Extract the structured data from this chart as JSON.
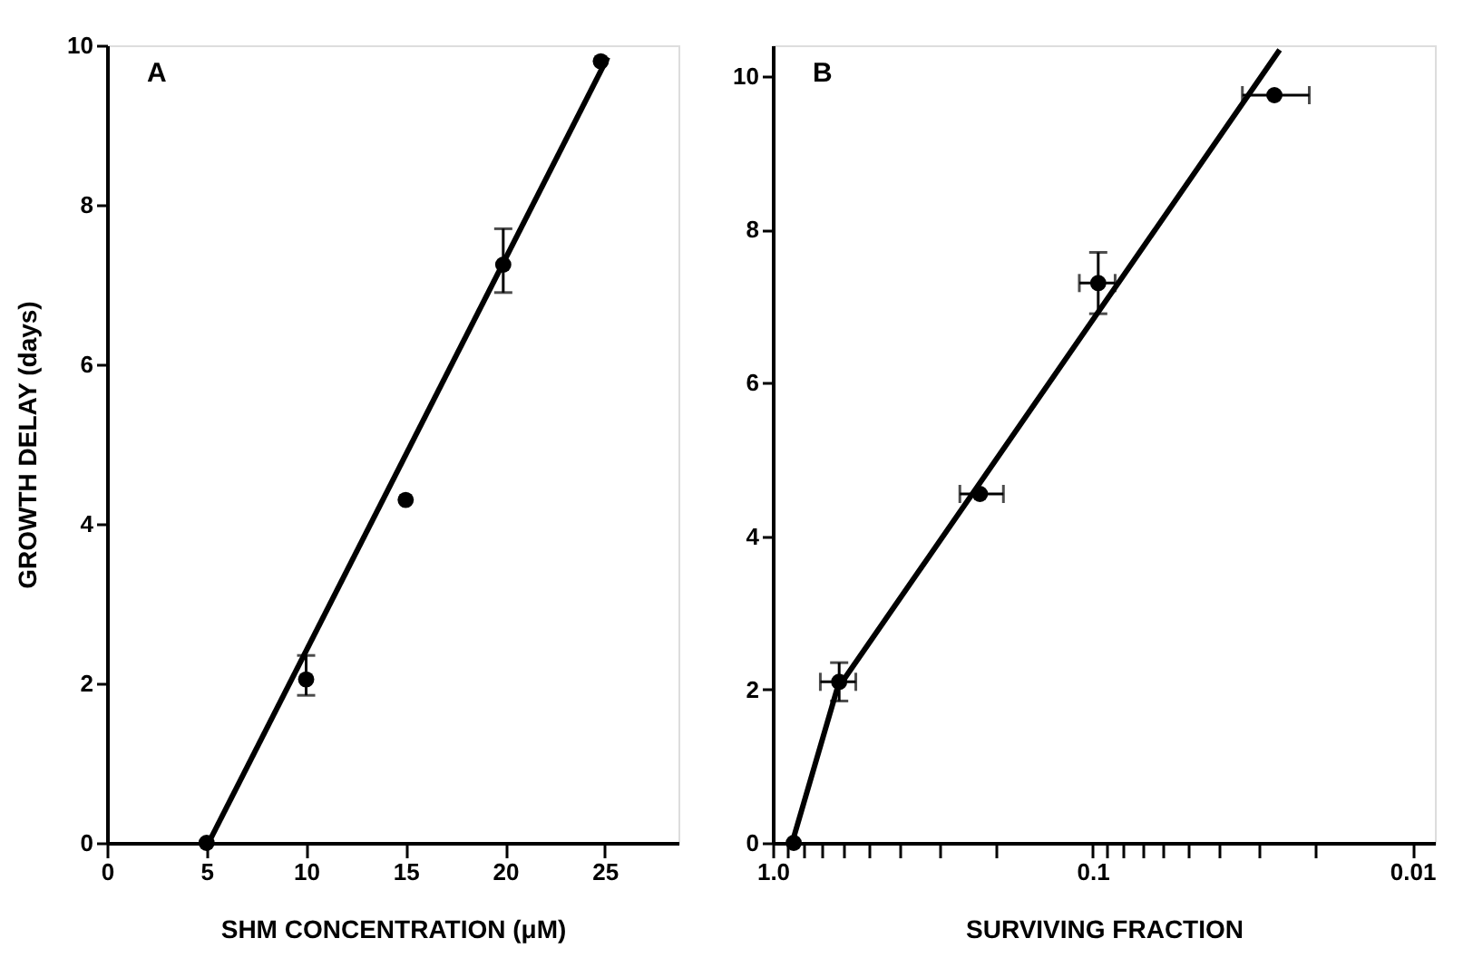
{
  "chart_data": [
    {
      "type": "scatter",
      "xlabel": "SHM CONCENTRATION (μM)",
      "ylabel": "GROWTH DELAY (days)",
      "annotations": [
        "A"
      ],
      "xlim": [
        0,
        28.7
      ],
      "xticks": [
        0,
        5,
        10,
        15,
        20,
        25
      ],
      "ylim": [
        0,
        10
      ],
      "yticks": [
        0,
        2,
        4,
        6,
        8,
        10
      ],
      "grid": false,
      "marker": "circle",
      "series": [
        {
          "type": "scatter",
          "color": "#000000",
          "x": [
            5,
            10,
            15,
            19.9,
            24.8
          ],
          "values": [
            0,
            2.05,
            4.3,
            7.25,
            9.8
          ],
          "errors": [
            null,
            [
              1.85,
              2.35
            ],
            null,
            [
              6.9,
              7.7
            ],
            null
          ]
        },
        {
          "type": "line",
          "color": "#000000",
          "line_style": "solid",
          "marker": "none",
          "x": [
            5.1,
            25.15
          ],
          "values": [
            0,
            9.85
          ]
        }
      ]
    },
    {
      "type": "scatter",
      "xlabel": "SURVIVING FRACTION",
      "annotations": [
        "B"
      ],
      "log": "x",
      "xlim": [
        1,
        0.0085
      ],
      "xticks": [
        {
          "value": 1,
          "label": "1.0"
        },
        {
          "value": 0.9,
          "label": null
        },
        {
          "value": 0.8,
          "label": null
        },
        {
          "value": 0.7,
          "label": null
        },
        {
          "value": 0.6,
          "label": null
        },
        {
          "value": 0.5,
          "label": null
        },
        {
          "value": 0.4,
          "label": null
        },
        {
          "value": 0.3,
          "label": null
        },
        {
          "value": 0.2,
          "label": null
        },
        0.1,
        {
          "value": 0.09,
          "label": null
        },
        {
          "value": 0.08,
          "label": null
        },
        {
          "value": 0.07,
          "label": null
        },
        {
          "value": 0.06,
          "label": null
        },
        {
          "value": 0.05,
          "label": null
        },
        {
          "value": 0.04,
          "label": null
        },
        {
          "value": 0.03,
          "label": null
        },
        {
          "value": 0.02,
          "label": null
        },
        0.01
      ],
      "ylim": [
        0,
        10.4
      ],
      "yticks": [
        0,
        2,
        4,
        6,
        8,
        10
      ],
      "grid": false,
      "marker": "circle",
      "series": [
        {
          "type": "scatter",
          "color": "#000000",
          "x": [
            0.86,
            0.62,
            0.225,
            0.096,
            0.027
          ],
          "values": [
            0,
            2.1,
            4.55,
            7.3,
            9.75
          ],
          "errors": [
            null,
            [
              1.85,
              2.35
            ],
            null,
            [
              6.9,
              7.7
            ],
            null
          ],
          "xerrors": [
            null,
            [
              0.71,
              0.55
            ],
            [
              0.26,
              0.19
            ],
            [
              0.11,
              0.085
            ],
            [
              0.034,
              0.021
            ]
          ]
        },
        {
          "type": "line",
          "color": "#000000",
          "line_style": "solid",
          "marker": "none",
          "x": [
            0.87,
            0.63,
            0.026
          ],
          "values": [
            0,
            2.0,
            10.34
          ]
        }
      ]
    }
  ]
}
